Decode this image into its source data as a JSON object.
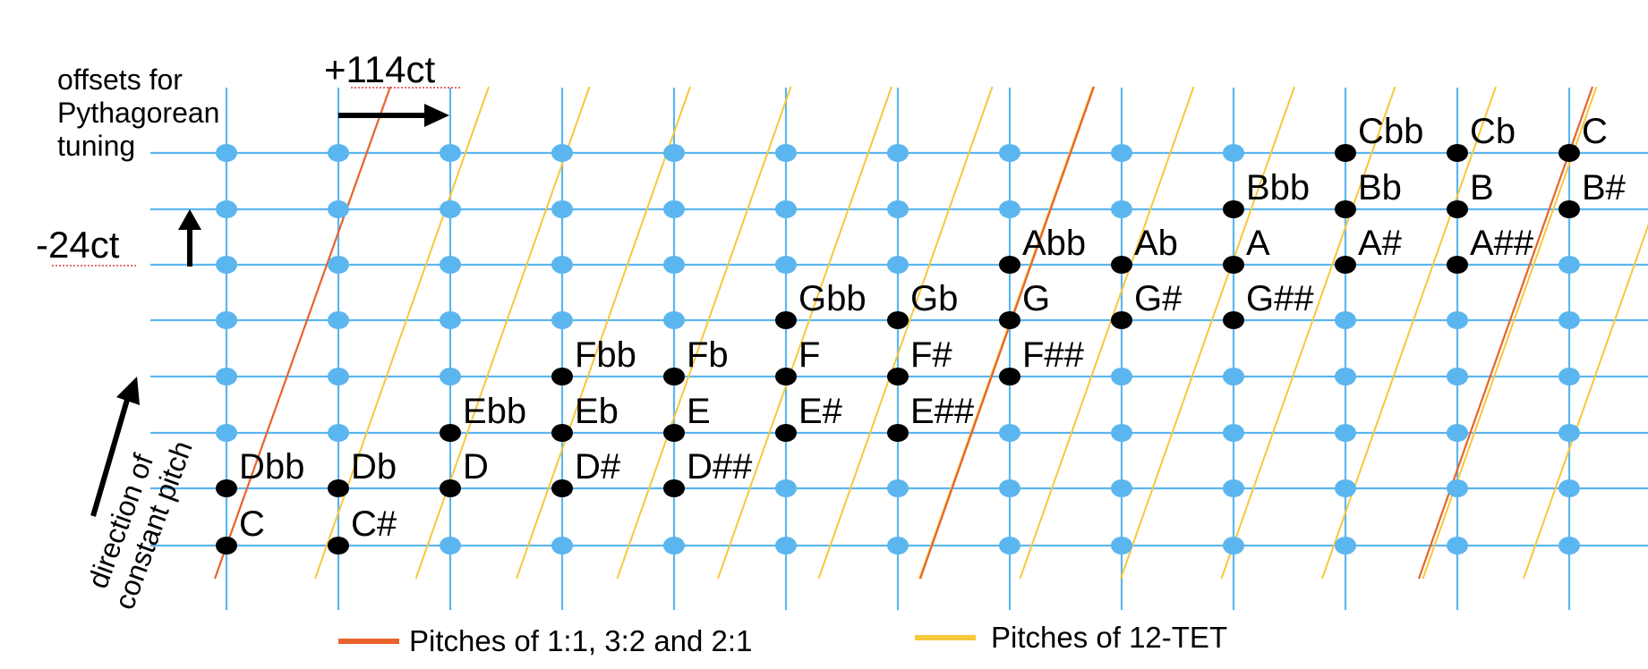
{
  "annotations": {
    "offsets_caption": [
      "offsets for",
      "Pythagorean",
      "tuning"
    ],
    "horizontal_offset": "+114ct",
    "vertical_offset": "-24ct",
    "direction_caption": [
      "direction of",
      "constant pitch"
    ]
  },
  "legend": [
    {
      "label": "Pitches of 1:1, 3:2 and 2:1",
      "color": "#e8632b"
    },
    {
      "label": "Pitches of 12-TET",
      "color": "#f7c73c"
    }
  ],
  "colors": {
    "grid": "#5bb6ef",
    "dot": "#5bb6ef",
    "note_dot": "#000000",
    "pythagorean_line": "#e8632b",
    "tet_line": "#f7c73c"
  },
  "notes": [
    {
      "name": "C",
      "col": 0,
      "row": 0
    },
    {
      "name": "Dbb",
      "col": 0,
      "row": 1
    },
    {
      "name": "C#",
      "col": 1,
      "row": 0
    },
    {
      "name": "Db",
      "col": 1,
      "row": 1
    },
    {
      "name": "D",
      "col": 2,
      "row": 1
    },
    {
      "name": "Ebb",
      "col": 2,
      "row": 2
    },
    {
      "name": "D#",
      "col": 3,
      "row": 1
    },
    {
      "name": "Eb",
      "col": 3,
      "row": 2
    },
    {
      "name": "Fbb",
      "col": 3,
      "row": 3
    },
    {
      "name": "D##",
      "col": 4,
      "row": 1
    },
    {
      "name": "E",
      "col": 4,
      "row": 2
    },
    {
      "name": "Fb",
      "col": 4,
      "row": 3
    },
    {
      "name": "E#",
      "col": 5,
      "row": 2
    },
    {
      "name": "F",
      "col": 5,
      "row": 3
    },
    {
      "name": "Gbb",
      "col": 5,
      "row": 4
    },
    {
      "name": "E##",
      "col": 6,
      "row": 2
    },
    {
      "name": "F#",
      "col": 6,
      "row": 3
    },
    {
      "name": "Gb",
      "col": 6,
      "row": 4
    },
    {
      "name": "F##",
      "col": 7,
      "row": 3
    },
    {
      "name": "G",
      "col": 7,
      "row": 4
    },
    {
      "name": "Abb",
      "col": 7,
      "row": 5
    },
    {
      "name": "G#",
      "col": 8,
      "row": 4
    },
    {
      "name": "Ab",
      "col": 8,
      "row": 5
    },
    {
      "name": "G##",
      "col": 9,
      "row": 4
    },
    {
      "name": "A",
      "col": 9,
      "row": 5
    },
    {
      "name": "Bbb",
      "col": 9,
      "row": 6
    },
    {
      "name": "A#",
      "col": 10,
      "row": 5
    },
    {
      "name": "Bb",
      "col": 10,
      "row": 6
    },
    {
      "name": "Cbb",
      "col": 10,
      "row": 7
    },
    {
      "name": "A##",
      "col": 11,
      "row": 5
    },
    {
      "name": "B",
      "col": 11,
      "row": 6
    },
    {
      "name": "Cb",
      "col": 11,
      "row": 7
    },
    {
      "name": "B#",
      "col": 12,
      "row": 6
    },
    {
      "name": "C",
      "col": 12,
      "row": 7
    }
  ]
}
